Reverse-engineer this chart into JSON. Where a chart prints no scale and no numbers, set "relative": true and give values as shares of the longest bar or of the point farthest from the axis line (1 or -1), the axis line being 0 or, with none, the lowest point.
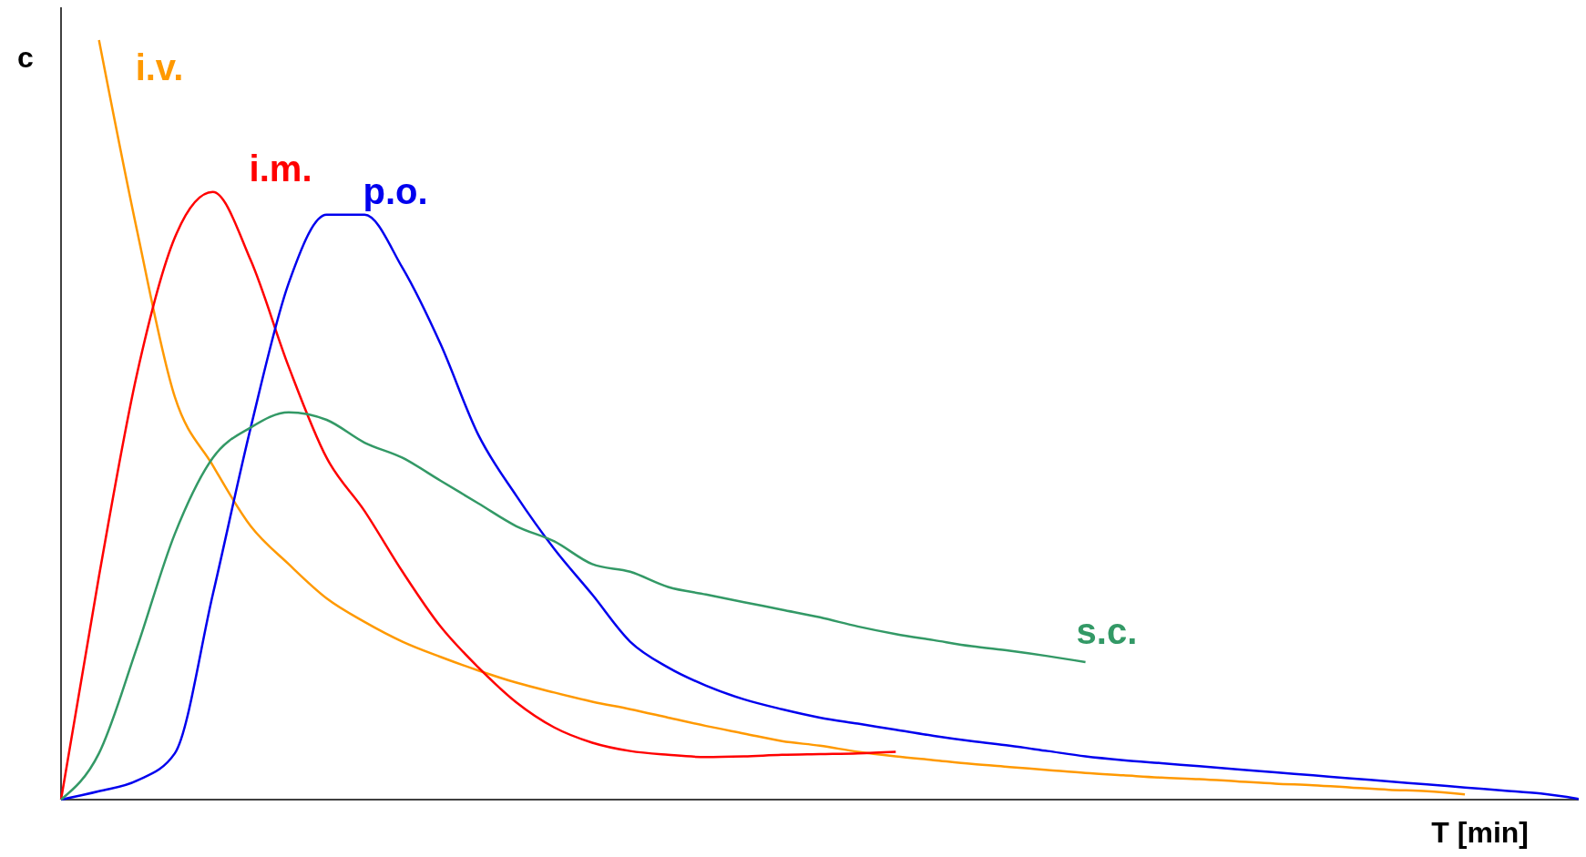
{
  "chart_data": {
    "type": "line",
    "relative": true,
    "xlabel": "T [min]",
    "ylabel": "c",
    "marker": "none",
    "line_style": "solid",
    "categories": [
      null,
      null,
      null,
      null,
      null,
      null,
      null,
      null,
      null,
      null,
      null,
      null,
      null,
      null,
      null,
      null,
      null,
      null,
      null,
      null,
      null,
      null,
      null,
      null,
      null,
      null,
      null,
      null,
      null,
      null,
      null,
      null,
      null,
      null,
      null,
      null,
      null,
      null,
      null,
      null,
      null
    ],
    "series": [
      {
        "name": "i.v.",
        "color": "#ff9900",
        "values": [
          null,
          1,
          0.75,
          0.53,
          0.44,
          0.36,
          0.31,
          0.265,
          0.234,
          0.208,
          0.188,
          0.17,
          0.154,
          0.141,
          0.129,
          0.119,
          0.108,
          0.097,
          0.087,
          0.077,
          0.071,
          0.063,
          0.057,
          0.052,
          0.047,
          0.043,
          0.039,
          0.035,
          0.032,
          0.029,
          0.027,
          0.024,
          0.021,
          0.019,
          0.016,
          0.013,
          0.011,
          0.007,
          null,
          null,
          null
        ]
      },
      {
        "name": "i.m.",
        "color": "#ff0000",
        "values": [
          0,
          0.294,
          0.56,
          0.74,
          0.8,
          0.71,
          0.57,
          0.45,
          0.38,
          0.3,
          0.228,
          0.174,
          0.128,
          0.095,
          0.075,
          0.064,
          0.059,
          0.056,
          0.057,
          0.059,
          0.06,
          0.061,
          0.063,
          null,
          null,
          null,
          null,
          null,
          null,
          null,
          null,
          null,
          null,
          null,
          null,
          null,
          null,
          null,
          null,
          null,
          null
        ]
      },
      {
        "name": "p.o.",
        "color": "#0000ee",
        "values": [
          0,
          0.011,
          0.025,
          0.061,
          0.27,
          0.49,
          0.68,
          0.77,
          0.77,
          0.7,
          0.6,
          0.48,
          0.4,
          0.33,
          0.27,
          0.208,
          0.174,
          0.15,
          0.132,
          0.119,
          0.108,
          0.1,
          0.092,
          0.084,
          0.077,
          0.071,
          0.064,
          0.057,
          0.052,
          0.048,
          0.044,
          0.04,
          0.036,
          0.032,
          0.028,
          0.024,
          0.02,
          0.016,
          0.012,
          0.008,
          0.001
        ]
      },
      {
        "name": "s.c.",
        "color": "#339966",
        "values": [
          0,
          0.061,
          0.2,
          0.35,
          0.45,
          0.49,
          0.51,
          0.5,
          0.47,
          0.45,
          0.42,
          0.39,
          0.36,
          0.34,
          0.31,
          0.3,
          0.28,
          0.27,
          0.26,
          0.25,
          0.24,
          0.228,
          0.218,
          0.21,
          0.202,
          0.196,
          0.189,
          0.181,
          null,
          null,
          null,
          null,
          null,
          null,
          null,
          null,
          null,
          null,
          null,
          null,
          null
        ]
      }
    ]
  }
}
